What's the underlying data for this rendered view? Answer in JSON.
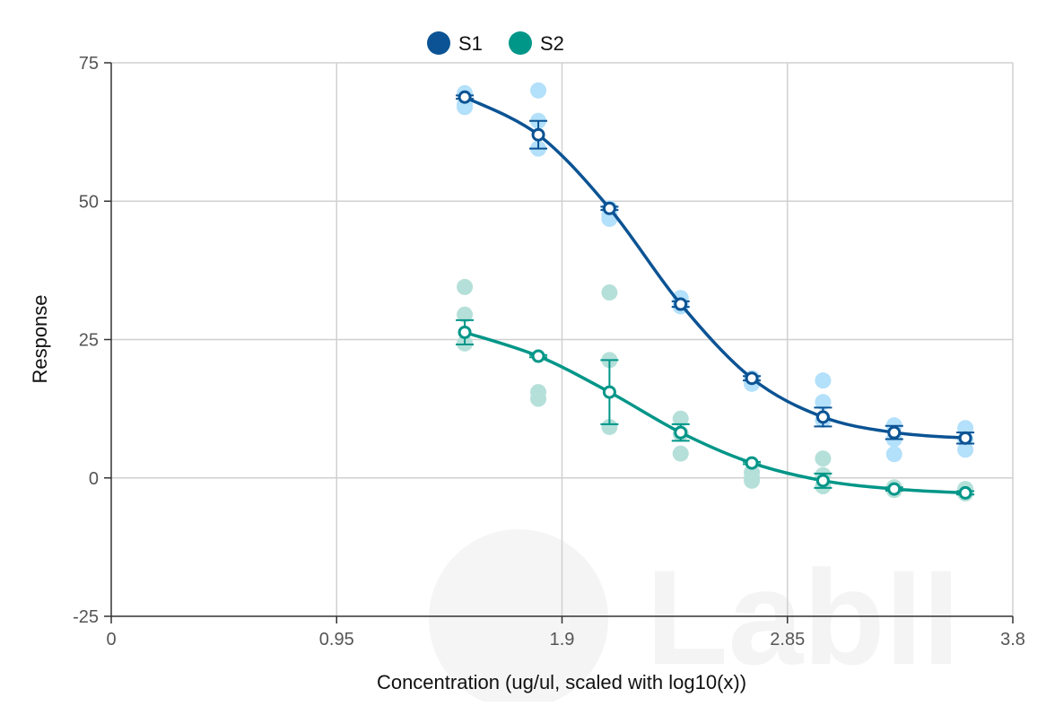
{
  "chart_data": {
    "type": "scatter",
    "title": "",
    "xlabel": "Concentration (ug/ul, scaled with log10(x))",
    "ylabel": "Response",
    "xlim": [
      0,
      3.8
    ],
    "ylim": [
      -25,
      75
    ],
    "xticks": [
      0,
      0.95,
      1.9,
      2.85,
      3.8
    ],
    "xtick_labels": [
      "0",
      "0.95",
      "1.9",
      "2.85",
      "3.8"
    ],
    "yticks": [
      -25,
      0,
      25,
      50,
      75
    ],
    "ytick_labels": [
      "-25",
      "0",
      "25",
      "50",
      "75"
    ],
    "grid": true,
    "legend": "top-center",
    "watermark": "LabII",
    "x": [
      1.49,
      1.8,
      2.1,
      2.4,
      2.7,
      3.0,
      3.3,
      3.6
    ],
    "series": [
      {
        "name": "S1",
        "color": "#0b5394",
        "replicate_color": "#b3e0fa",
        "means": [
          68.8,
          62.0,
          48.7,
          31.4,
          18.0,
          11.0,
          8.2,
          7.2
        ],
        "errors": [
          0.3,
          2.5,
          0.3,
          0.5,
          0.4,
          1.7,
          1.2,
          1.0
        ],
        "replicates": [
          [
            69.5,
            67.5,
            67.0
          ],
          [
            70.0,
            64.5,
            59.5
          ],
          [
            48.7,
            47.5,
            46.8
          ],
          [
            32.5,
            31.4,
            31.0
          ],
          [
            18.0,
            17.0
          ],
          [
            17.6,
            13.7,
            10.5
          ],
          [
            9.5,
            7.0,
            4.3
          ],
          [
            9.0,
            7.0,
            5.1
          ]
        ]
      },
      {
        "name": "S2",
        "color": "#009688",
        "replicate_color": "#b5e0d9",
        "means": [
          26.3,
          22.0,
          15.5,
          8.2,
          2.7,
          -0.5,
          -2.0,
          -2.7
        ],
        "errors": [
          2.2,
          0.2,
          5.8,
          1.5,
          0.2,
          1.3,
          0.3,
          0.3
        ],
        "replicates": [
          [
            34.5,
            29.5,
            24.3
          ],
          [
            15.5,
            14.3
          ],
          [
            33.5,
            21.3,
            9.2
          ],
          [
            10.7,
            8.0,
            4.4
          ],
          [
            1.0,
            0.0,
            -0.5
          ],
          [
            3.5,
            0.5,
            -1.5
          ],
          [
            -1.7,
            -2.2
          ],
          [
            -2.0,
            -2.8
          ]
        ]
      }
    ]
  }
}
